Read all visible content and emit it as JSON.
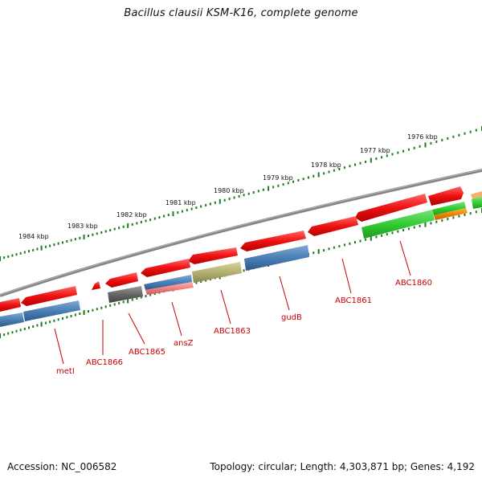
{
  "title": "Bacillus clausii KSM-K16, complete genome",
  "footer": {
    "accession": "Accession: NC_006582",
    "topology": "Topology: circular; Length: 4,303,871 bp; Genes: 4,192"
  },
  "colors": {
    "backbone": "#858585",
    "tick": "#1f7a1f",
    "tick_label": "#111111",
    "gene_label": "#cc0000",
    "red": "#ee1111",
    "blue": "#4a7fb5",
    "green": "#33cc33",
    "olive": "#b3b070",
    "pink": "#f08080",
    "gray": "#666666",
    "orange": "#ee8800"
  },
  "ticks": [
    "1976 kbp",
    "1977 kbp",
    "1978 kbp",
    "1979 kbp",
    "1980 kbp",
    "1981 kbp",
    "1982 kbp",
    "1983 kbp",
    "1984 kbp"
  ],
  "genes": [
    {
      "name": "ABC1860",
      "color": "red",
      "strand": "rev"
    },
    {
      "name": "ABC1861",
      "color": "red",
      "strand": "rev"
    },
    {
      "name": "gudB",
      "color": "red",
      "strand": "rev"
    },
    {
      "name": "ABC1863",
      "color": "red",
      "strand": "rev"
    },
    {
      "name": "ansZ",
      "color": "red",
      "strand": "rev"
    },
    {
      "name": "ABC1865",
      "color": "red",
      "strand": "rev"
    },
    {
      "name": "ABC1866",
      "color": "red",
      "strand": "rev"
    },
    {
      "name": "metI",
      "color": "red",
      "strand": "rev"
    }
  ]
}
